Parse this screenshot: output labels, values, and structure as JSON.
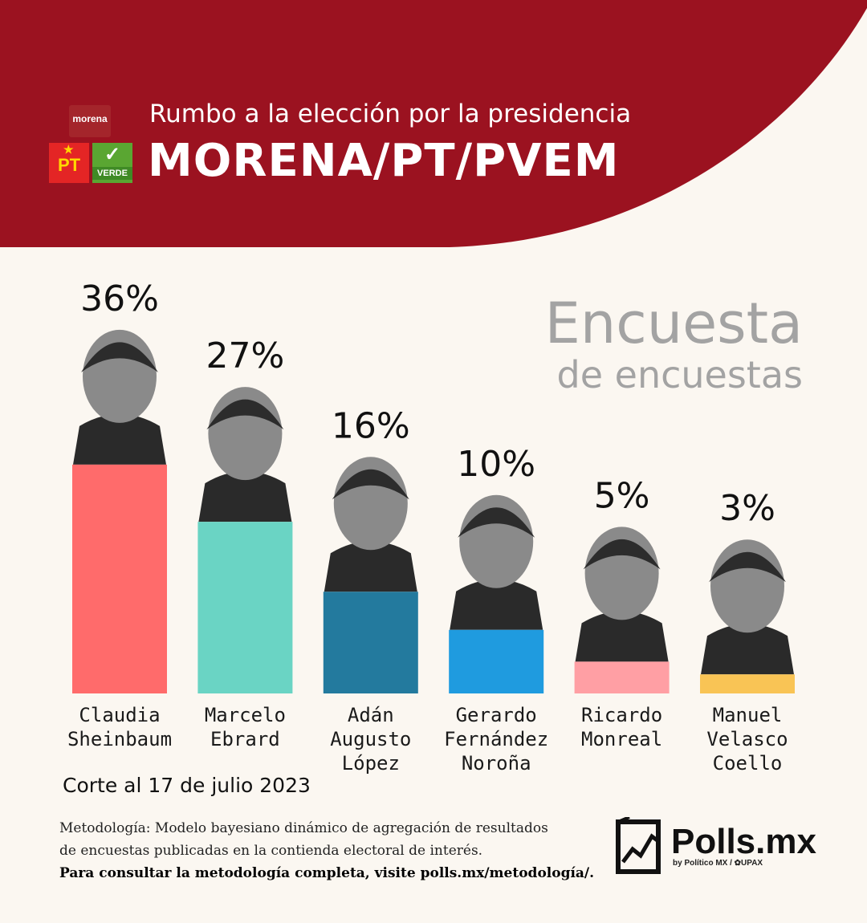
{
  "header": {
    "subtitle": "Rumbo a la elección por la presidencia",
    "title": "MORENA/PT/PVEM",
    "logos": {
      "morena": "morena",
      "pt": "PT",
      "verde": "VERDE"
    },
    "bg_color": "#9b1220"
  },
  "side_title": {
    "line1": "Encuesta",
    "line2": "de encuestas"
  },
  "chart_data": {
    "type": "bar",
    "categories": [
      "Claudia\nSheinbaum",
      "Marcelo\nEbrard",
      "Adán\nAugusto\nLópez",
      "Gerardo\nFernández\nNoroña",
      "Ricardo\nMonreal",
      "Manuel\nVelasco\nCoello"
    ],
    "values": [
      36,
      27,
      16,
      10,
      5,
      3
    ],
    "value_labels": [
      "36%",
      "27%",
      "16%",
      "10%",
      "5%",
      "3%"
    ],
    "colors": [
      "#ff6b6b",
      "#6ad4c4",
      "#237a9e",
      "#1f9bdf",
      "#ff9fa4",
      "#f9c455"
    ],
    "unit": "%"
  },
  "footer": {
    "date": "Corte al 17 de julio 2023",
    "methodology_line1": "Metodología: Modelo bayesiano dinámico de agregación de resultados",
    "methodology_line2": "de encuestas publicadas en la contienda electoral de interés.",
    "methodology_link": "Para consultar la metodología completa, visite polls.mx/metodología/.",
    "brand": "Polls.mx",
    "brand_byline": "by Político MX / ✿UPAX"
  }
}
